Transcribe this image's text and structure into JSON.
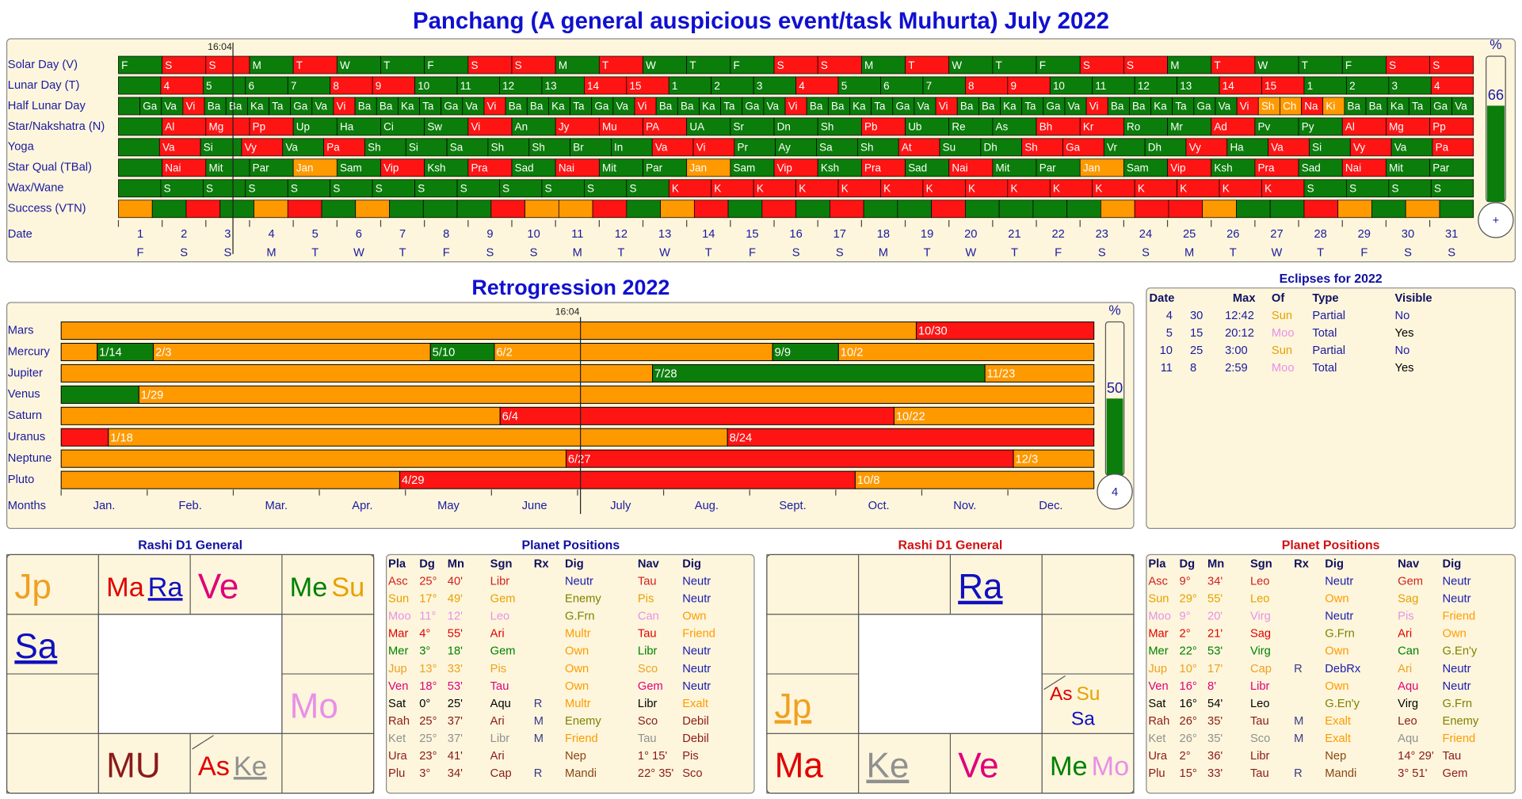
{
  "palette": {
    "g": "#0b7d0b",
    "r": "#ff1414",
    "o": "#ff9900"
  },
  "panchang": {
    "title": "Panchang (A general auspicious event/task Muhurta)  July 2022",
    "time": "16:04",
    "rows": [
      {
        "label": "Solar Day (V)",
        "cells": [
          "F",
          "S",
          "S",
          "M",
          "T",
          "W",
          "T",
          "F",
          "S",
          "S",
          "M",
          "T",
          "W",
          "T",
          "F",
          "S",
          "S",
          "M",
          "T",
          "W",
          "T",
          "F",
          "S",
          "S",
          "M",
          "T",
          "W",
          "T",
          "F",
          "S",
          "S"
        ],
        "colors": "grrgrgggrrgrgggrrgrgggrrgrgggrr"
      },
      {
        "label": "Lunar Day (T)",
        "cells": [
          null,
          "4",
          "5",
          "6",
          "7",
          "8",
          "9",
          "10",
          "11",
          "12",
          "13",
          "14",
          "15",
          "1",
          "2",
          "3",
          "4",
          "5",
          "6",
          "7",
          "8",
          "9",
          "10",
          "11",
          "12",
          "13",
          "14",
          "15",
          "1",
          "2",
          "3",
          "4"
        ],
        "colors": "grgggrrggggrrgggrgggrrggggrrgggr"
      },
      {
        "label": "Half Lunar Day",
        "cells": [
          null,
          "Ga",
          "Va",
          "Vi",
          "Ba",
          "Ba",
          "Ka",
          "Ta",
          "Ga",
          "Va",
          "Vi",
          "Ba",
          "Ba",
          "Ka",
          "Ta",
          "Ga",
          "Va",
          "Vi",
          "Ba",
          "Ba",
          "Ka",
          "Ta",
          "Ga",
          "Va",
          "Vi",
          "Ba",
          "Ba",
          "Ka",
          "Ta",
          "Ga",
          "Va",
          "Vi",
          "Ba",
          "Ba",
          "Ka",
          "Ta",
          "Ga",
          "Va",
          "Vi",
          "Ba",
          "Ba",
          "Ka",
          "Ta",
          "Ga",
          "Va",
          "Vi",
          "Ba",
          "Ba",
          "Ka",
          "Ta",
          "Ga",
          "Va",
          "Vi",
          "Sh",
          "Ch",
          "Na",
          "Ki",
          "Ba",
          "Ba",
          "Ka",
          "Ta",
          "Ga",
          "Va"
        ],
        "colors": "gggrggggggrggggggrggggggrggggggrggggggrggggggrggggggroorogggggg"
      },
      {
        "label": "Star/Nakshatra (N)",
        "cells": [
          null,
          "Al",
          "Mg",
          "Pp",
          "Up",
          "Ha",
          "Ci",
          "Sw",
          "Vi",
          "An",
          "Jy",
          "Mu",
          "PA",
          "UA",
          "Sr",
          "Dn",
          "Sh",
          "Pb",
          "Ub",
          "Re",
          "As",
          "Bh",
          "Kr",
          "Ro",
          "Mr",
          "Ad",
          "Pv",
          "Py",
          "Al",
          "Mg",
          "Pp"
        ],
        "colors": "grrrggggrgrrrggggrgggrrggrggrrr"
      },
      {
        "label": "Yoga",
        "cells": [
          null,
          "Va",
          "Si",
          "Vy",
          "Va",
          "Pa",
          "Sh",
          "Si",
          "Sa",
          "Sh",
          "Sh",
          "Br",
          "In",
          "Va",
          "Vi",
          "Pr",
          "Ay",
          "Sa",
          "Sh",
          "At",
          "Su",
          "Dh",
          "Sh",
          "Ga",
          "Vr",
          "Dh",
          "Vy",
          "Ha",
          "Va",
          "Si",
          "Vy",
          "Va",
          "Pa"
        ],
        "colors": "grgrgrgggggggrrggggrggrrggrgrgrgr"
      },
      {
        "label": "Star Qual (TBal)",
        "cells": [
          null,
          "Nai",
          "Mit",
          "Par",
          "Jan",
          "Sam",
          "Vip",
          "Ksh",
          "Pra",
          "Sad",
          "Nai",
          "Mit",
          "Par",
          "Jan",
          "Sam",
          "Vip",
          "Ksh",
          "Pra",
          "Sad",
          "Nai",
          "Mit",
          "Par",
          "Jan",
          "Sam",
          "Vip",
          "Ksh",
          "Pra",
          "Sad",
          "Nai",
          "Mit",
          "Par"
        ],
        "colors": "grggogrgrgrggogrgrgrggogrgrgrgg"
      },
      {
        "label": "Wax/Wane",
        "cells": [
          null,
          "S",
          "S",
          "S",
          "S",
          "S",
          "S",
          "S",
          "S",
          "S",
          "S",
          "S",
          "S",
          "K",
          "K",
          "K",
          "K",
          "K",
          "K",
          "K",
          "K",
          "K",
          "K",
          "K",
          "K",
          "K",
          "K",
          "K",
          "S",
          "S",
          "S",
          "S"
        ],
        "colors": "gggggggggggggrrrrrrrrrrrrrrrgggg"
      },
      {
        "label": "Success (VTN)",
        "colors": "ogrgorgogggroorgorgrgrggrggggorroggrogog"
      }
    ],
    "date_label": "Date",
    "dates": [
      1,
      2,
      3,
      4,
      5,
      6,
      7,
      8,
      9,
      10,
      11,
      12,
      13,
      14,
      15,
      16,
      17,
      18,
      19,
      20,
      21,
      22,
      23,
      24,
      25,
      26,
      27,
      28,
      29,
      30,
      31
    ],
    "weekdays": [
      "F",
      "S",
      "S",
      "M",
      "T",
      "W",
      "T",
      "F",
      "S",
      "S",
      "M",
      "T",
      "W",
      "T",
      "F",
      "S",
      "S",
      "M",
      "T",
      "W",
      "T",
      "F",
      "S",
      "S",
      "M",
      "T",
      "W",
      "T",
      "F",
      "S",
      "S"
    ],
    "percent_label": "%",
    "percent": 66,
    "dial": "+"
  },
  "retrogression": {
    "title": "Retrogression 2022",
    "time": "16:04",
    "planets": [
      {
        "name": "Mars",
        "start_color": "o",
        "segments": [
          {
            "date": "10/30",
            "color": "r"
          }
        ]
      },
      {
        "name": "Mercury",
        "start_color": "o",
        "segments": [
          {
            "date": "1/14",
            "color": "g"
          },
          {
            "date": "2/3",
            "color": "o"
          },
          {
            "date": "5/10",
            "color": "g"
          },
          {
            "date": "6/2",
            "color": "o"
          },
          {
            "date": "9/9",
            "color": "g"
          },
          {
            "date": "10/2",
            "color": "o"
          }
        ]
      },
      {
        "name": "Jupiter",
        "start_color": "o",
        "segments": [
          {
            "date": "7/28",
            "color": "g"
          },
          {
            "date": "11/23",
            "color": "o"
          }
        ]
      },
      {
        "name": "Venus",
        "start_color": "g",
        "segments": [
          {
            "date": "1/29",
            "color": "o"
          }
        ]
      },
      {
        "name": "Saturn",
        "start_color": "o",
        "segments": [
          {
            "date": "6/4",
            "color": "r"
          },
          {
            "date": "10/22",
            "color": "o"
          }
        ]
      },
      {
        "name": "Uranus",
        "start_color": "r",
        "segments": [
          {
            "date": "1/18",
            "color": "o"
          },
          {
            "date": "8/24",
            "color": "r"
          }
        ]
      },
      {
        "name": "Neptune",
        "start_color": "o",
        "segments": [
          {
            "date": "6/27",
            "color": "r"
          },
          {
            "date": "12/3",
            "color": "o"
          }
        ]
      },
      {
        "name": "Pluto",
        "start_color": "o",
        "segments": [
          {
            "date": "4/29",
            "color": "r"
          },
          {
            "date": "10/8",
            "color": "o"
          }
        ]
      }
    ],
    "months_label": "Months",
    "months": [
      "Jan.",
      "Feb.",
      "Mar.",
      "Apr.",
      "May",
      "June",
      "July",
      "Aug.",
      "Sept.",
      "Oct.",
      "Nov.",
      "Dec."
    ],
    "percent_label": "%",
    "percent": 50,
    "dial": "4"
  },
  "eclipses": {
    "title": "Eclipses for 2022",
    "header": [
      "Date",
      "Max",
      "Of",
      "Type",
      "Visible"
    ],
    "rows": [
      [
        "4",
        "30",
        "12:42",
        "Sun",
        "Partial",
        "No"
      ],
      [
        "5",
        "15",
        "20:12",
        "Moo",
        "Total",
        "Yes"
      ],
      [
        "10",
        "25",
        "3:00",
        "Sun",
        "Partial",
        "No"
      ],
      [
        "11",
        "8",
        "2:59",
        "Moo",
        "Total",
        "Yes"
      ]
    ],
    "of_colors": {
      "Sun": "#e8a000",
      "Moo": "#e890e8"
    },
    "visible_colors": {
      "No": "#1a1ab0",
      "Yes": "#000000"
    }
  },
  "charts": [
    {
      "title": "Rashi D1 General",
      "title_color": "#1010a0",
      "signs": [
        [
          {
            "t": "Jp",
            "c": "#f0a020"
          }
        ],
        [
          {
            "t": "Ma",
            "c": "#e00000"
          },
          {
            "t": "Ra",
            "c": "#1010c0",
            "u": true
          }
        ],
        [
          {
            "t": "Ve",
            "c": "#e0007a"
          }
        ],
        [
          {
            "t": "Me",
            "c": "#008000"
          },
          {
            "t": "Su",
            "c": "#e8a000"
          }
        ],
        [],
        [
          {
            "t": "Mo",
            "c": "#e890e8"
          }
        ],
        [],
        [
          {
            "t": "As",
            "c": "#e00000"
          },
          {
            "t": "Ke",
            "c": "#909090",
            "u": true
          }
        ],
        [
          {
            "t": "MU",
            "c": "#8b1a1a"
          }
        ],
        [],
        [],
        [
          {
            "t": "Sa",
            "c": "#1010c0",
            "u": true
          }
        ]
      ]
    },
    {
      "title": "Rashi D1 General",
      "title_color": "#d01010",
      "signs": [
        [],
        [],
        [
          {
            "t": "Ra",
            "c": "#1010c0",
            "u": true
          }
        ],
        [],
        [],
        [
          {
            "t": "As",
            "c": "#e00000"
          },
          {
            "t": "Su",
            "c": "#e8a000"
          },
          {
            "t": "Sa",
            "c": "#1010c0"
          }
        ],
        [
          {
            "t": "Me",
            "c": "#008000"
          },
          {
            "t": "Mo",
            "c": "#e890e8"
          }
        ],
        [
          {
            "t": "Ve",
            "c": "#e0007a"
          }
        ],
        [
          {
            "t": "Ke",
            "c": "#909090",
            "u": true
          }
        ],
        [
          {
            "t": "Ma",
            "c": "#e00000"
          }
        ],
        [
          {
            "t": "Jp",
            "c": "#f0a020",
            "u": true
          }
        ],
        []
      ]
    }
  ],
  "positions": [
    {
      "title": "Planet Positions",
      "title_color": "#1010a0",
      "header": [
        "Pla",
        "Dg",
        "Mn",
        "Sgn",
        "Rx",
        "Dig",
        "Nav",
        "Dig"
      ],
      "rows": [
        {
          "color": "#d02020",
          "cells": [
            "Asc",
            "25°",
            "40'",
            "Libr",
            null,
            "Neutr",
            "Tau",
            "Neutr"
          ]
        },
        {
          "color": "#e8a000",
          "cells": [
            "Sun",
            "17°",
            "49'",
            "Gem",
            null,
            "Enemy",
            "Pis",
            "Neutr"
          ]
        },
        {
          "color": "#e890e8",
          "cells": [
            "Moo",
            "11°",
            "12'",
            "Leo",
            null,
            "G.Frn",
            "Can",
            "Own"
          ]
        },
        {
          "color": "#e00000",
          "cells": [
            "Mar",
            "4°",
            "55'",
            "Ari",
            null,
            "Multr",
            "Tau",
            "Friend"
          ]
        },
        {
          "color": "#008000",
          "cells": [
            "Mer",
            "3°",
            "18'",
            "Gem",
            null,
            "Own",
            "Libr",
            "Neutr"
          ]
        },
        {
          "color": "#f0a020",
          "cells": [
            "Jup",
            "13°",
            "33'",
            "Pis",
            null,
            "Own",
            "Sco",
            "Neutr"
          ]
        },
        {
          "color": "#e0007a",
          "cells": [
            "Ven",
            "18°",
            "53'",
            "Tau",
            null,
            "Own",
            "Gem",
            "Neutr"
          ]
        },
        {
          "color": "#000000",
          "cells": [
            "Sat",
            "0°",
            "25'",
            "Aqu",
            "R",
            "Multr",
            "Libr",
            "Exalt"
          ]
        },
        {
          "color": "#8b1a1a",
          "cells": [
            "Rah",
            "25°",
            "37'",
            "Ari",
            "M",
            "Enemy",
            "Sco",
            "Debil"
          ]
        },
        {
          "color": "#909090",
          "cells": [
            "Ket",
            "25°",
            "37'",
            "Libr",
            "M",
            "Friend",
            "Tau",
            "Debil"
          ]
        },
        {
          "color": "#8b1a1a",
          "cells": [
            "Ura",
            "23°",
            "41'",
            "Ari",
            null,
            "Nep",
            "1°  15'",
            "Pis"
          ]
        },
        {
          "color": "#8b1a1a",
          "cells": [
            "Plu",
            "3°",
            "34'",
            "Cap",
            "R",
            "Mandi",
            "22°  35'",
            "Sco"
          ]
        }
      ]
    },
    {
      "title": "Planet Positions",
      "title_color": "#d01010",
      "header": [
        "Pla",
        "Dg",
        "Mn",
        "Sgn",
        "Rx",
        "Dig",
        "Nav",
        "Dig"
      ],
      "rows": [
        {
          "color": "#d02020",
          "cells": [
            "Asc",
            "9°",
            "34'",
            "Leo",
            null,
            "Neutr",
            "Gem",
            "Neutr"
          ]
        },
        {
          "color": "#e8a000",
          "cells": [
            "Sun",
            "29°",
            "55'",
            "Leo",
            null,
            "Own",
            "Sag",
            "Neutr"
          ]
        },
        {
          "color": "#e890e8",
          "cells": [
            "Moo",
            "9°",
            "20'",
            "Virg",
            null,
            "Neutr",
            "Pis",
            "Friend"
          ]
        },
        {
          "color": "#e00000",
          "cells": [
            "Mar",
            "2°",
            "21'",
            "Sag",
            null,
            "G.Frn",
            "Ari",
            "Own"
          ]
        },
        {
          "color": "#008000",
          "cells": [
            "Mer",
            "22°",
            "53'",
            "Virg",
            null,
            "Own",
            "Can",
            "G.En'y"
          ]
        },
        {
          "color": "#f0a020",
          "cells": [
            "Jup",
            "10°",
            "17'",
            "Cap",
            "R",
            "DebRx",
            "Ari",
            "Neutr"
          ]
        },
        {
          "color": "#e0007a",
          "cells": [
            "Ven",
            "16°",
            "8'",
            "Libr",
            null,
            "Own",
            "Aqu",
            "Neutr"
          ]
        },
        {
          "color": "#000000",
          "cells": [
            "Sat",
            "16°",
            "54'",
            "Leo",
            null,
            "G.En'y",
            "Virg",
            "G.Frn"
          ]
        },
        {
          "color": "#8b1a1a",
          "cells": [
            "Rah",
            "26°",
            "35'",
            "Tau",
            "M",
            "Exalt",
            "Leo",
            "Enemy"
          ]
        },
        {
          "color": "#909090",
          "cells": [
            "Ket",
            "26°",
            "35'",
            "Sco",
            "M",
            "Exalt",
            "Aqu",
            "Friend"
          ]
        },
        {
          "color": "#8b1a1a",
          "cells": [
            "Ura",
            "2°",
            "36'",
            "Libr",
            null,
            "Nep",
            "14°  29'",
            "Tau"
          ]
        },
        {
          "color": "#8b1a1a",
          "cells": [
            "Plu",
            "15°",
            "33'",
            "Tau",
            "R",
            "Mandi",
            "3°  51'",
            "Gem"
          ]
        }
      ]
    }
  ],
  "dig_colors": {
    "Neutr": "#1a1ab0",
    "Enemy": "#808000",
    "G.Frn": "#808000",
    "G.En'y": "#808000",
    "Multr": "#ff9a00",
    "Own": "#ff9a00",
    "Friend": "#ff9a00",
    "Exalt": "#ff9a00",
    "Debil": "#8b1a1a",
    "DebRx": "#1a1ab0",
    "Nep": "#8b4513",
    "Mandi": "#8b4513"
  }
}
